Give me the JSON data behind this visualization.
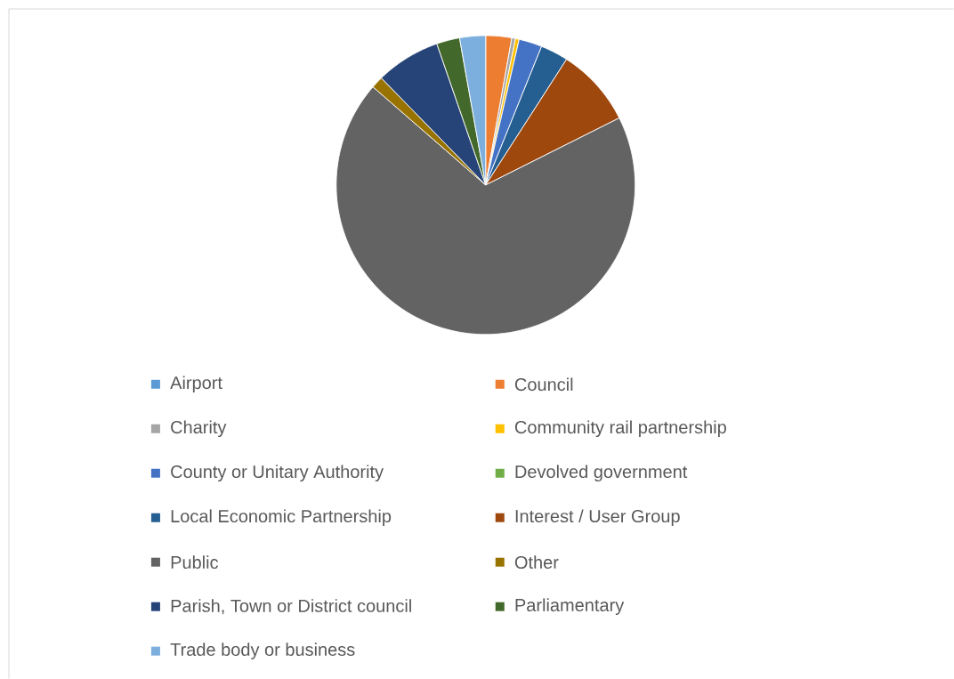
{
  "chart_data": {
    "type": "pie",
    "categories": [
      "Airport",
      "Council",
      "Charity",
      "Community rail partnership",
      "County or Unitary Authority",
      "Devolved government",
      "Local Economic Partnership",
      "Interest / User Group",
      "Public",
      "Other",
      "Parish, Town or District council",
      "Parliamentary",
      "Trade body or business"
    ],
    "values": [
      null,
      2.8,
      0.4,
      0.4,
      2.5,
      null,
      3.0,
      8.5,
      68.8,
      1.3,
      7.0,
      2.5,
      2.8
    ],
    "colors": [
      "#5b9bd5",
      "#ed7d31",
      "#a5a5a5",
      "#ffc000",
      "#4472c4",
      "#70ad47",
      "#255e91",
      "#9e480e",
      "#636363",
      "#997300",
      "#264478",
      "#43682b",
      "#7cafdd"
    ],
    "legend": "bottom"
  }
}
